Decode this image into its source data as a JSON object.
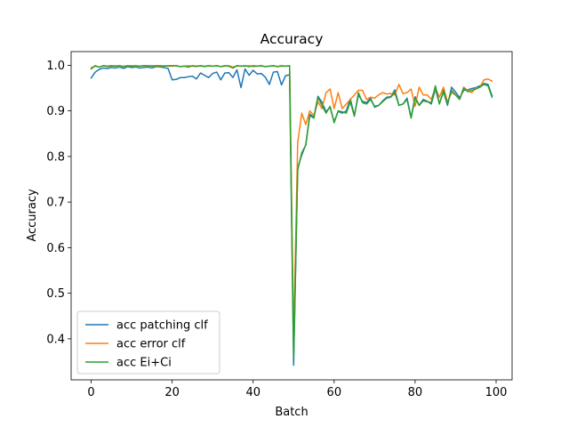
{
  "chart_data": {
    "type": "line",
    "title": "Accuracy",
    "xlabel": "Batch",
    "ylabel": "Accuracy",
    "xlim": [
      -4.95,
      103.95
    ],
    "ylim": [
      0.31,
      1.03
    ],
    "xticks": [
      0,
      20,
      40,
      60,
      80,
      100
    ],
    "xtick_labels": [
      "0",
      "20",
      "40",
      "60",
      "80",
      "100"
    ],
    "yticks": [
      0.4,
      0.5,
      0.6,
      0.7,
      0.8,
      0.9,
      1.0
    ],
    "ytick_labels": [
      "0.4",
      "0.5",
      "0.6",
      "0.7",
      "0.8",
      "0.9",
      "1.0"
    ],
    "grid": false,
    "legend_position": "lower-left",
    "series": [
      {
        "name": "acc patching clf",
        "color": "#1f77b4",
        "values": [
          0.972,
          0.985,
          0.991,
          0.994,
          0.993,
          0.995,
          0.994,
          0.996,
          0.993,
          0.997,
          0.995,
          0.996,
          0.994,
          0.995,
          0.996,
          0.994,
          0.997,
          0.996,
          0.995,
          0.993,
          0.968,
          0.969,
          0.973,
          0.973,
          0.975,
          0.976,
          0.97,
          0.983,
          0.978,
          0.973,
          0.982,
          0.985,
          0.968,
          0.983,
          0.984,
          0.973,
          0.99,
          0.951,
          0.992,
          0.978,
          0.989,
          0.981,
          0.982,
          0.974,
          0.958,
          0.985,
          0.986,
          0.957,
          0.977,
          0.979,
          0.342,
          0.775,
          0.803,
          0.826,
          0.893,
          0.886,
          0.932,
          0.919,
          0.898,
          0.908,
          0.876,
          0.899,
          0.895,
          0.9,
          0.926,
          0.89,
          0.935,
          0.921,
          0.918,
          0.928,
          0.908,
          0.912,
          0.922,
          0.93,
          0.931,
          0.946,
          0.912,
          0.915,
          0.928,
          0.886,
          0.931,
          0.912,
          0.925,
          0.921,
          0.915,
          0.948,
          0.916,
          0.942,
          0.912,
          0.952,
          0.941,
          0.929,
          0.945,
          0.946,
          0.949,
          0.951,
          0.955,
          0.96,
          0.958,
          0.933
        ]
      },
      {
        "name": "acc error clf",
        "color": "#ff7f0e",
        "values": [
          0.995,
          0.998,
          0.996,
          0.999,
          0.997,
          0.998,
          0.999,
          0.997,
          0.998,
          0.998,
          0.999,
          0.997,
          0.998,
          0.999,
          0.998,
          0.999,
          0.998,
          0.997,
          0.999,
          0.998,
          0.998,
          0.999,
          0.997,
          0.998,
          0.999,
          0.998,
          0.997,
          0.999,
          0.998,
          0.999,
          0.998,
          0.999,
          0.997,
          0.998,
          0.999,
          0.996,
          0.999,
          0.998,
          0.998,
          0.999,
          0.997,
          0.998,
          0.999,
          0.997,
          0.998,
          0.999,
          0.997,
          0.998,
          0.998,
          0.999,
          0.4,
          0.83,
          0.895,
          0.87,
          0.9,
          0.89,
          0.92,
          0.905,
          0.94,
          0.948,
          0.905,
          0.94,
          0.905,
          0.915,
          0.925,
          0.935,
          0.945,
          0.945,
          0.925,
          0.93,
          0.928,
          0.935,
          0.94,
          0.937,
          0.938,
          0.935,
          0.958,
          0.938,
          0.94,
          0.948,
          0.91,
          0.952,
          0.935,
          0.935,
          0.925,
          0.95,
          0.93,
          0.952,
          0.92,
          0.94,
          0.935,
          0.925,
          0.952,
          0.945,
          0.94,
          0.95,
          0.952,
          0.968,
          0.97,
          0.965
        ]
      },
      {
        "name": "acc Ei+Ci",
        "color": "#2ca02c",
        "values": [
          0.992,
          0.999,
          0.996,
          0.999,
          0.998,
          0.999,
          0.998,
          0.999,
          0.997,
          0.999,
          0.998,
          0.999,
          0.998,
          0.999,
          0.999,
          0.998,
          0.999,
          0.999,
          0.998,
          0.999,
          0.999,
          0.999,
          0.997,
          0.998,
          0.996,
          0.999,
          0.998,
          0.999,
          0.997,
          0.999,
          0.998,
          0.999,
          0.997,
          0.999,
          0.998,
          0.994,
          0.999,
          0.998,
          0.999,
          0.997,
          0.999,
          0.998,
          0.999,
          0.997,
          0.998,
          0.999,
          0.997,
          0.999,
          0.998,
          0.999,
          0.36,
          0.77,
          0.808,
          0.825,
          0.89,
          0.884,
          0.93,
          0.912,
          0.895,
          0.91,
          0.874,
          0.9,
          0.898,
          0.895,
          0.92,
          0.888,
          0.94,
          0.918,
          0.915,
          0.925,
          0.91,
          0.912,
          0.92,
          0.928,
          0.93,
          0.94,
          0.912,
          0.915,
          0.925,
          0.884,
          0.928,
          0.912,
          0.922,
          0.92,
          0.918,
          0.955,
          0.915,
          0.945,
          0.915,
          0.945,
          0.935,
          0.925,
          0.95,
          0.942,
          0.945,
          0.948,
          0.952,
          0.958,
          0.955,
          0.93
        ]
      }
    ]
  }
}
